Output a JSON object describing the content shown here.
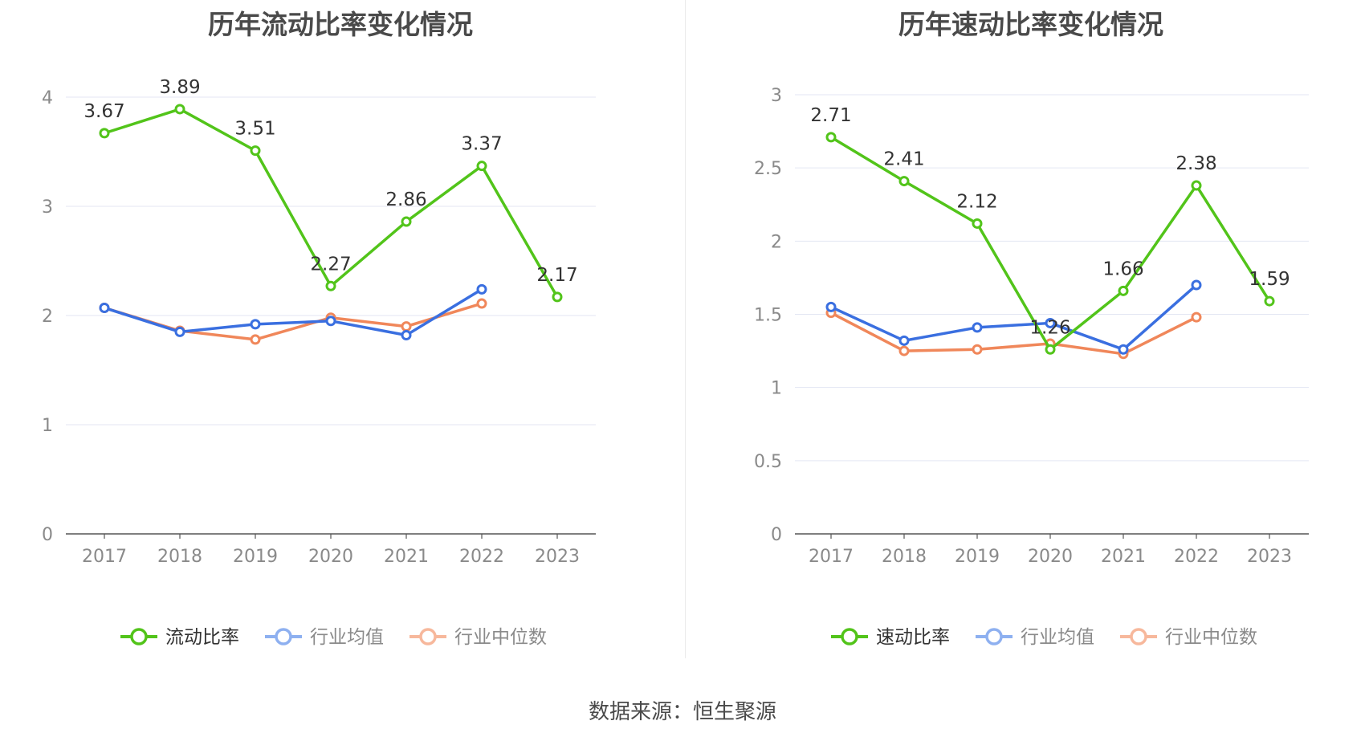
{
  "chart_data": [
    {
      "type": "line",
      "title": "历年流动比率变化情况",
      "categories": [
        "2017",
        "2018",
        "2019",
        "2020",
        "2021",
        "2022",
        "2023"
      ],
      "ylim": [
        0,
        4
      ],
      "yticks": [
        "0",
        "1",
        "2",
        "3",
        "4"
      ],
      "grid": true,
      "legend_position": "bottom",
      "series": [
        {
          "name": "流动比率",
          "color": "#52c41a",
          "values": [
            3.67,
            3.89,
            3.51,
            2.27,
            2.86,
            3.37,
            2.17
          ],
          "labels": [
            "3.67",
            "3.89",
            "3.51",
            "2.27",
            "2.86",
            "3.37",
            "2.17"
          ]
        },
        {
          "name": "行业均值",
          "color": "#3a6fe0",
          "values": [
            2.07,
            1.85,
            1.92,
            1.95,
            1.82,
            2.24,
            null
          ]
        },
        {
          "name": "行业中位数",
          "color": "#f0875a",
          "values": [
            2.07,
            1.86,
            1.78,
            1.98,
            1.9,
            2.11,
            null
          ]
        }
      ]
    },
    {
      "type": "line",
      "title": "历年速动比率变化情况",
      "categories": [
        "2017",
        "2018",
        "2019",
        "2020",
        "2021",
        "2022",
        "2023"
      ],
      "ylim": [
        0,
        3
      ],
      "yticks": [
        "0",
        "0.5",
        "1",
        "1.5",
        "2",
        "2.5",
        "3"
      ],
      "grid": true,
      "legend_position": "bottom",
      "series": [
        {
          "name": "速动比率",
          "color": "#52c41a",
          "values": [
            2.71,
            2.41,
            2.12,
            1.26,
            1.66,
            2.38,
            1.59
          ],
          "labels": [
            "2.71",
            "2.41",
            "2.12",
            "1.26",
            "1.66",
            "2.38",
            "1.59"
          ]
        },
        {
          "name": "行业均值",
          "color": "#3a6fe0",
          "values": [
            1.55,
            1.32,
            1.41,
            1.44,
            1.26,
            1.7,
            null
          ]
        },
        {
          "name": "行业中位数",
          "color": "#f0875a",
          "values": [
            1.51,
            1.25,
            1.26,
            1.3,
            1.23,
            1.48,
            null
          ]
        }
      ]
    }
  ],
  "footer": {
    "source": "数据来源：恒生聚源"
  }
}
